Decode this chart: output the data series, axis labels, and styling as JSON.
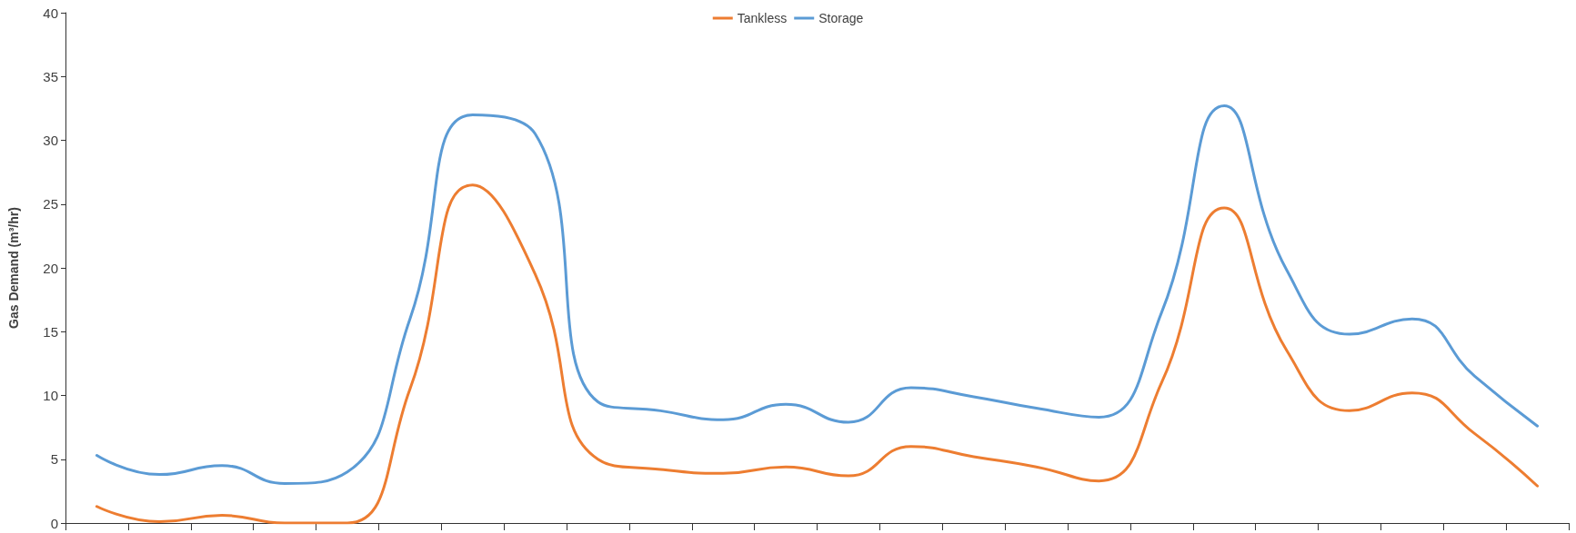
{
  "chart_data": {
    "type": "line",
    "ylabel": "Gas Demand (m³/hr)",
    "categories": [
      null,
      null,
      null,
      null,
      null,
      null,
      null,
      null,
      null,
      null,
      null,
      null,
      null,
      null,
      null,
      null,
      null,
      null,
      null,
      null,
      null,
      null,
      null,
      null
    ],
    "series": [
      {
        "name": "Tankless",
        "color": "#ed7d31",
        "values": [
          1.3,
          0.1,
          0.6,
          0,
          0,
          10.5,
          26.5,
          19.5,
          5,
          4.2,
          3.9,
          4.4,
          3.7,
          6,
          5.2,
          4.4,
          3.3,
          11,
          24.7,
          13.5,
          8.8,
          10.2,
          7,
          2.9
        ]
      },
      {
        "name": "Storage",
        "color": "#5b9bd5",
        "values": [
          5.3,
          3.8,
          4.5,
          3.1,
          4,
          16,
          32,
          30.5,
          9.5,
          8.8,
          8.1,
          9.3,
          7.9,
          10.6,
          9.9,
          9,
          8.3,
          16.5,
          32.7,
          19.8,
          14.8,
          16,
          11.5,
          7.6
        ]
      }
    ],
    "ylim": [
      0,
      40
    ],
    "yticks": [
      0,
      5,
      10,
      15,
      20,
      25,
      30,
      35,
      40
    ],
    "grid": false,
    "legend": "top",
    "marker": "none",
    "line_style": "solid",
    "tick_labels": "y"
  }
}
